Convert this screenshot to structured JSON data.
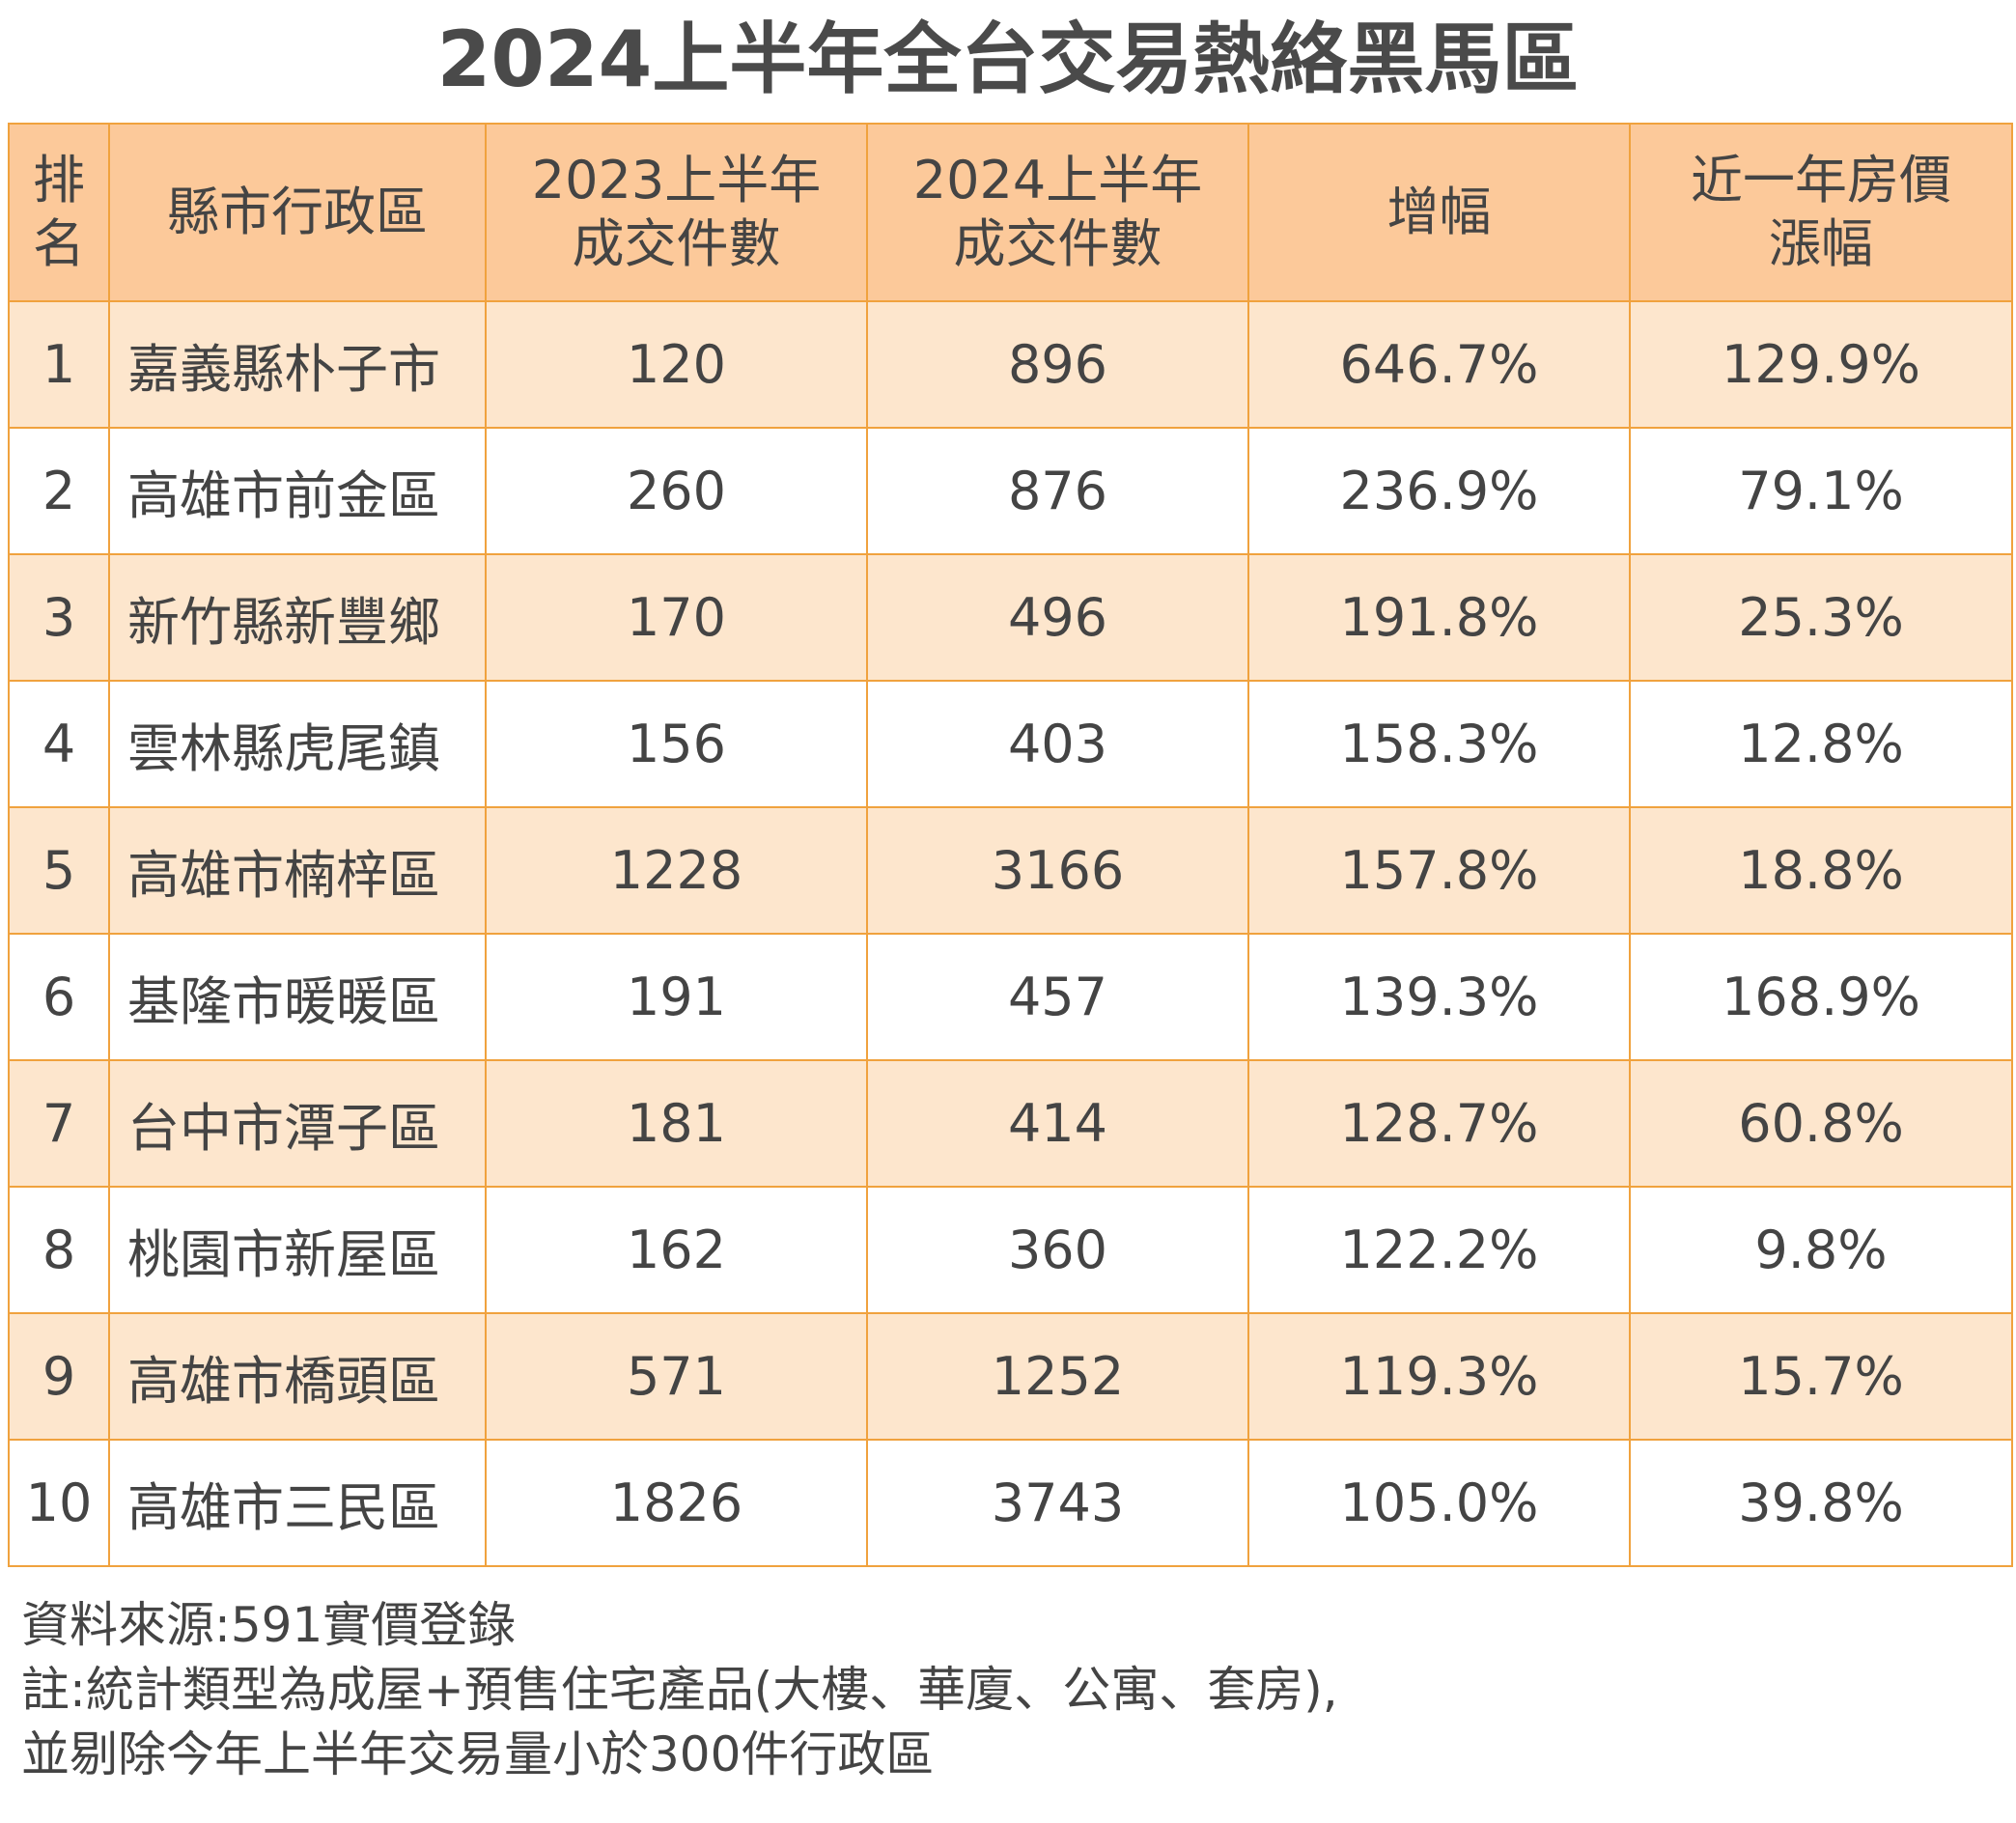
{
  "title": "2024上半年全台交易熱絡黑馬區",
  "table": {
    "headers": [
      "排\n名",
      "縣市行政區",
      "2023上半年\n成交件數",
      "2024上半年\n成交件數",
      "增幅",
      "近一年房價\n漲幅"
    ],
    "rows": [
      [
        "1",
        "嘉義縣朴子市",
        "120",
        "896",
        "646.7%",
        "129.9%"
      ],
      [
        "2",
        "高雄市前金區",
        "260",
        "876",
        "236.9%",
        "79.1%"
      ],
      [
        "3",
        "新竹縣新豐鄉",
        "170",
        "496",
        "191.8%",
        "25.3%"
      ],
      [
        "4",
        "雲林縣虎尾鎮",
        "156",
        "403",
        "158.3%",
        "12.8%"
      ],
      [
        "5",
        "高雄市楠梓區",
        "1228",
        "3166",
        "157.8%",
        "18.8%"
      ],
      [
        "6",
        "基隆市暖暖區",
        "191",
        "457",
        "139.3%",
        "168.9%"
      ],
      [
        "7",
        "台中市潭子區",
        "181",
        "414",
        "128.7%",
        "60.8%"
      ],
      [
        "8",
        "桃園市新屋區",
        "162",
        "360",
        "122.2%",
        "9.8%"
      ],
      [
        "9",
        "高雄市橋頭區",
        "571",
        "1252",
        "119.3%",
        "15.7%"
      ],
      [
        "10",
        "高雄市三民區",
        "1826",
        "3743",
        "105.0%",
        "39.8%"
      ]
    ]
  },
  "footnotes": [
    "資料來源:591實價登錄",
    "註:統計類型為成屋+預售住宅產品(大樓、華廈、公寓、套房),",
    "並剔除今年上半年交易量小於300件行政區"
  ]
}
